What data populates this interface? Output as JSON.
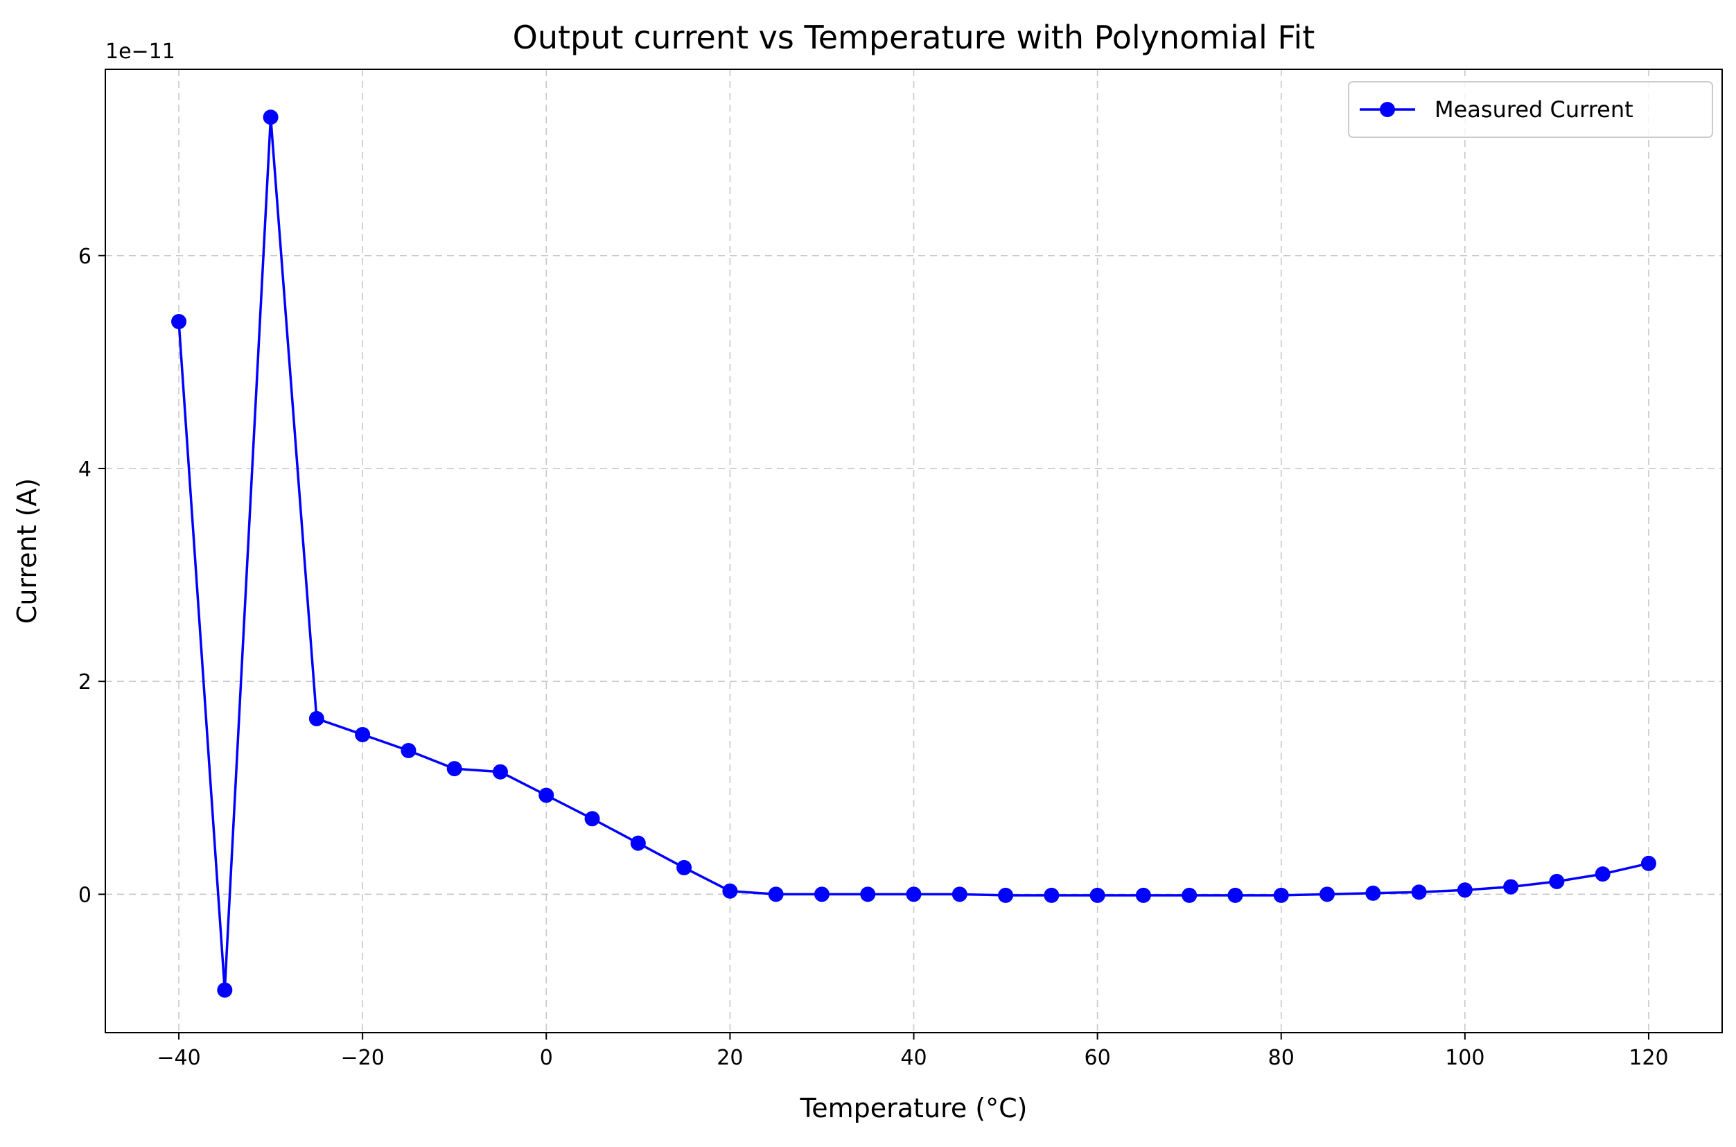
{
  "chart_data": {
    "type": "line",
    "title": "Output current vs Temperature with Polynomial Fit",
    "xlabel": "Temperature (°C)",
    "ylabel": "Current (A)",
    "y_offset_label": "1e−11",
    "xlim": [
      -48,
      128
    ],
    "ylim": [
      -1.3,
      7.75
    ],
    "y_scale_factor": 1e-11,
    "xticks": [
      -40,
      -20,
      0,
      20,
      40,
      60,
      80,
      100,
      120
    ],
    "xtick_labels": [
      "−40",
      "−20",
      "0",
      "20",
      "40",
      "60",
      "80",
      "100",
      "120"
    ],
    "yticks": [
      0,
      2,
      4,
      6
    ],
    "ytick_labels": [
      "0",
      "2",
      "4",
      "6"
    ],
    "grid": true,
    "legend_position": "top-right",
    "series": [
      {
        "name": "Measured Current",
        "color": "#0000ff",
        "marker": "circle",
        "x": [
          -40,
          -35,
          -30,
          -25,
          -20,
          -15,
          -10,
          -5,
          0,
          5,
          10,
          15,
          20,
          25,
          30,
          35,
          40,
          45,
          50,
          55,
          60,
          65,
          70,
          75,
          80,
          85,
          90,
          95,
          100,
          105,
          110,
          115,
          120
        ],
        "values": [
          5.38,
          -0.9,
          7.3,
          1.65,
          1.5,
          1.35,
          1.18,
          1.15,
          0.93,
          0.71,
          0.48,
          0.25,
          0.03,
          0.0,
          0.0,
          0.0,
          0.0,
          0.0,
          -0.01,
          -0.01,
          -0.01,
          -0.01,
          -0.01,
          -0.01,
          -0.01,
          0.0,
          0.01,
          0.02,
          0.04,
          0.07,
          0.12,
          0.19,
          0.29
        ]
      }
    ]
  }
}
